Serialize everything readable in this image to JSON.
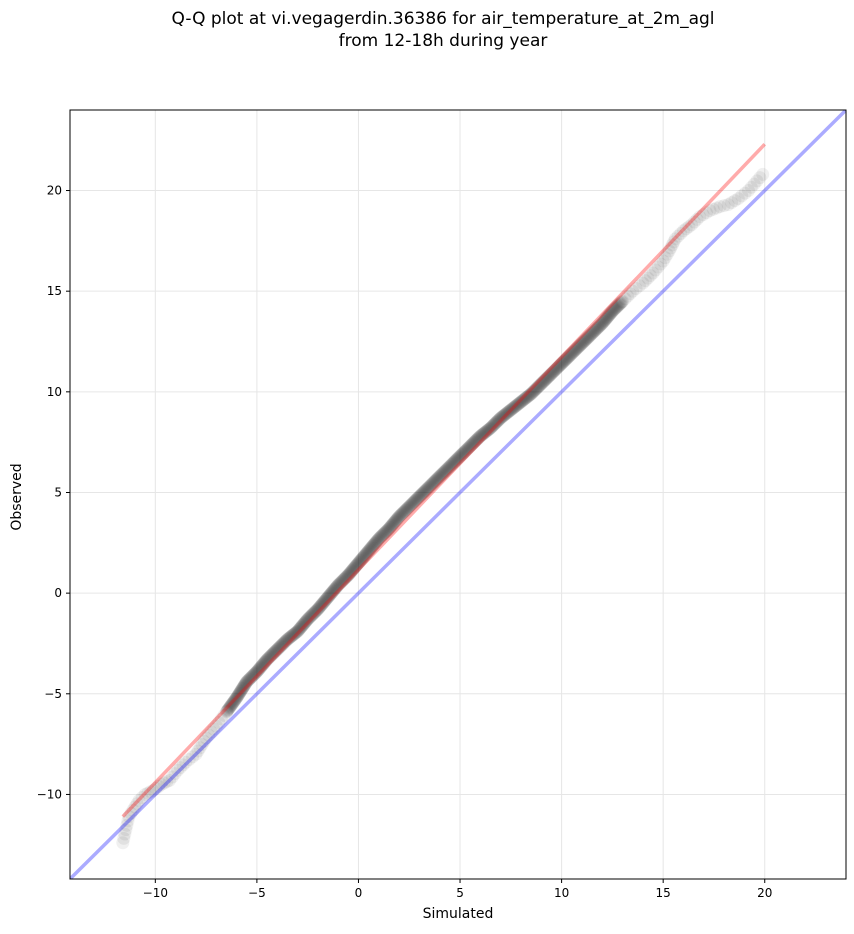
{
  "chart_data": {
    "type": "scatter",
    "title_lines": [
      "Q-Q plot at vi.vegagerdin.36386 for air_temperature_at_2m_agl",
      "from 12-18h during year"
    ],
    "xlabel": "Simulated",
    "ylabel": "Observed",
    "xlim": [
      -14.2,
      24
    ],
    "ylim": [
      -14.2,
      24
    ],
    "xticks": [
      -10,
      -5,
      0,
      5,
      10,
      15,
      20
    ],
    "yticks": [
      -10,
      -5,
      0,
      5,
      10,
      15,
      20
    ],
    "xtick_labels": [
      "−10",
      "−5",
      "0",
      "5",
      "10",
      "15",
      "20"
    ],
    "ytick_labels": [
      "−10",
      "−5",
      "0",
      "5",
      "10",
      "15",
      "20"
    ],
    "grid": true,
    "colors": {
      "points": "#000000",
      "fit_line": "#ff0000",
      "identity_line": "#0000ff",
      "grid": "#e6e6e6"
    },
    "identity_line": {
      "x": [
        -14.2,
        24
      ],
      "y": [
        -14.2,
        24
      ]
    },
    "fit_line": {
      "x": [
        -11.6,
        20.0
      ],
      "y": [
        -11.1,
        22.3
      ]
    },
    "quantiles": {
      "x": [
        -11.6,
        -11.3,
        -10.8,
        -10.5,
        -10.1,
        -9.7,
        -9.3,
        -8.9,
        -8.5,
        -8.0,
        -7.5,
        -7.0,
        -6.5,
        -6.0,
        -5.5,
        -5.0,
        -4.5,
        -4.0,
        -3.5,
        -3.0,
        -2.5,
        -2.0,
        -1.5,
        -1.0,
        -0.5,
        0.0,
        0.5,
        1.0,
        1.5,
        2.0,
        2.5,
        3.0,
        3.5,
        4.0,
        4.5,
        5.0,
        5.5,
        6.0,
        6.5,
        7.0,
        7.5,
        8.0,
        8.5,
        9.0,
        9.5,
        10.0,
        10.5,
        11.0,
        11.5,
        12.0,
        12.5,
        13.0,
        13.5,
        14.0,
        14.5,
        15.0,
        15.3,
        15.6,
        16.0,
        16.4,
        16.8,
        17.3,
        17.8,
        18.2,
        18.7,
        19.2,
        19.9
      ],
      "y": [
        -12.4,
        -11.1,
        -10.3,
        -10.0,
        -9.8,
        -9.5,
        -9.3,
        -8.8,
        -8.4,
        -8.0,
        -7.2,
        -6.6,
        -5.9,
        -5.2,
        -4.4,
        -3.9,
        -3.3,
        -2.8,
        -2.3,
        -1.9,
        -1.3,
        -0.8,
        -0.2,
        0.4,
        0.9,
        1.5,
        2.1,
        2.7,
        3.2,
        3.8,
        4.3,
        4.8,
        5.3,
        5.8,
        6.3,
        6.8,
        7.3,
        7.8,
        8.2,
        8.7,
        9.1,
        9.5,
        9.9,
        10.4,
        10.9,
        11.4,
        11.9,
        12.4,
        12.9,
        13.4,
        14.0,
        14.5,
        15.0,
        15.4,
        15.9,
        16.5,
        17.0,
        17.6,
        18.0,
        18.3,
        18.7,
        19.0,
        19.2,
        19.3,
        19.6,
        20.0,
        20.8
      ]
    }
  }
}
